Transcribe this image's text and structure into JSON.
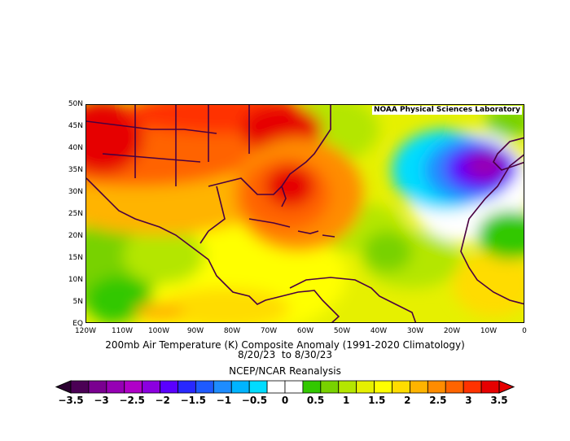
{
  "map": {
    "badge": "NOAA Physical Sciences Laboratory",
    "lat_labels": [
      "50N",
      "45N",
      "40N",
      "35N",
      "30N",
      "25N",
      "20N",
      "15N",
      "10N",
      "5N",
      "EQ"
    ],
    "lon_labels": [
      "120W",
      "110W",
      "100W",
      "90W",
      "80W",
      "70W",
      "60W",
      "50W",
      "40W",
      "30W",
      "20W",
      "10W",
      "0"
    ],
    "extent": {
      "lon": [
        -120,
        0
      ],
      "lat": [
        0,
        50
      ]
    }
  },
  "caption": {
    "title": "200mb Air Temperature (K) Composite Anomaly (1991-2020 Climatology)",
    "dates": "8/20/23  to 8/30/23",
    "source": "NCEP/NCAR Reanalysis"
  },
  "colorbar": {
    "labels": [
      "-3.5",
      "-3",
      "-2.5",
      "-2",
      "-1.5",
      "-1",
      "-0.5",
      "0",
      "0.5",
      "1",
      "1.5",
      "2",
      "2.5",
      "3",
      "3.5"
    ],
    "colors": [
      "#4b0055",
      "#7a0090",
      "#9600b4",
      "#b000c8",
      "#8c00e0",
      "#5a00ff",
      "#2828ff",
      "#1e5aff",
      "#1e8cff",
      "#00b4ff",
      "#00dcff",
      "#ffffff",
      "#ffffff",
      "#32c800",
      "#78d200",
      "#b4e600",
      "#e6f000",
      "#ffff00",
      "#ffdc00",
      "#ffb400",
      "#ff8c00",
      "#ff6400",
      "#ff3200",
      "#e60000"
    ],
    "range": [
      -3.5,
      3.5
    ]
  }
}
